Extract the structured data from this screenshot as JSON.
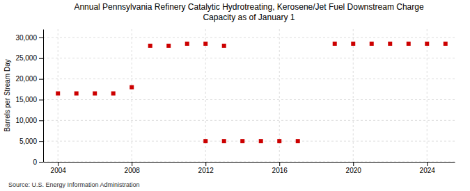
{
  "chart_data": {
    "type": "scatter",
    "title": "Annual Pennsylvania Refinery Catalytic Hydrotreating, Kerosene/Jet Fuel Downstream Charge\nCapacity as of January 1",
    "ylabel": "Barrels per Stream Day",
    "annotations": [
      "Source: U.S. Energy Information Administration"
    ],
    "x": [
      2004,
      2005,
      2006,
      2007,
      2008,
      2009,
      2010,
      2011,
      2012,
      2012,
      2013,
      2013,
      2014,
      2015,
      2016,
      2017,
      2019,
      2020,
      2021,
      2022,
      2023,
      2024,
      2025
    ],
    "values": [
      16500,
      16500,
      16500,
      16500,
      18000,
      28000,
      28000,
      28500,
      28500,
      5000,
      28000,
      5000,
      5000,
      5000,
      5000,
      5000,
      28500,
      28500,
      28500,
      28500,
      28500,
      28500,
      28500
    ],
    "color": "#cc0000",
    "marker": "square",
    "xlim": [
      2003.2,
      2025.5
    ],
    "xticks": [
      2004,
      2008,
      2012,
      2016,
      2020,
      2024
    ],
    "ylim": [
      0,
      32000
    ],
    "yticks": [
      0,
      {
        "value": 5000,
        "label": "5,000"
      },
      {
        "value": 10000,
        "label": "10,000"
      },
      {
        "value": 15000,
        "label": "15,000"
      },
      {
        "value": 20000,
        "label": "20,000"
      },
      {
        "value": 25000,
        "label": "25,000"
      },
      {
        "value": 30000,
        "label": "30,000"
      }
    ],
    "grid": true
  }
}
